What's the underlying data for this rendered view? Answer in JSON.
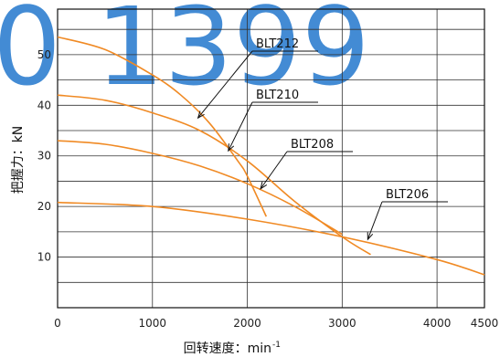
{
  "chart_data": {
    "type": "line",
    "title": "",
    "xlabel": "回转速度：min",
    "xlabel_sup": "-1",
    "ylabel": "把握力：kN",
    "xlim": [
      0,
      4500
    ],
    "ylim": [
      0,
      59
    ],
    "x_ticks": [
      0,
      1000,
      2000,
      3000,
      4000,
      4500
    ],
    "x_tick_labels": [
      "0",
      "1000",
      "2000",
      "3000",
      "4000",
      "4500"
    ],
    "y_ticks": [
      10,
      20,
      30,
      40,
      50
    ],
    "y_tick_labels": [
      "10",
      "20",
      "30",
      "40",
      "50"
    ],
    "grid": true,
    "watermark": "0 1399",
    "line_color": "#f08a24",
    "series": [
      {
        "name": "BLT212",
        "x": [
          0,
          500,
          1000,
          1300,
          1600,
          1900,
          2000,
          2200
        ],
        "y": [
          53.5,
          51,
          46,
          42,
          36.5,
          29,
          26,
          18
        ]
      },
      {
        "name": "BLT210",
        "x": [
          0,
          500,
          1000,
          1500,
          2000,
          2500,
          3000,
          3300
        ],
        "y": [
          42,
          41,
          38.5,
          35,
          29,
          21,
          14,
          10.5
        ]
      },
      {
        "name": "BLT208",
        "x": [
          0,
          500,
          1000,
          1500,
          2000,
          2500,
          3000
        ],
        "y": [
          33,
          32.3,
          30.5,
          28,
          24.5,
          20,
          14.5
        ]
      },
      {
        "name": "BLT206",
        "x": [
          0,
          1000,
          2000,
          3000,
          4000,
          4500
        ],
        "y": [
          20.8,
          20,
          17.5,
          14,
          9.5,
          6.5
        ]
      }
    ],
    "annotations": [
      {
        "label": "BLT212",
        "target_x": 1480,
        "target_y": 37.5
      },
      {
        "label": "BLT210",
        "target_x": 1800,
        "target_y": 31
      },
      {
        "label": "BLT208",
        "target_x": 2140,
        "target_y": 23.5
      },
      {
        "label": "BLT206",
        "target_x": 3270,
        "target_y": 13.5
      }
    ]
  }
}
